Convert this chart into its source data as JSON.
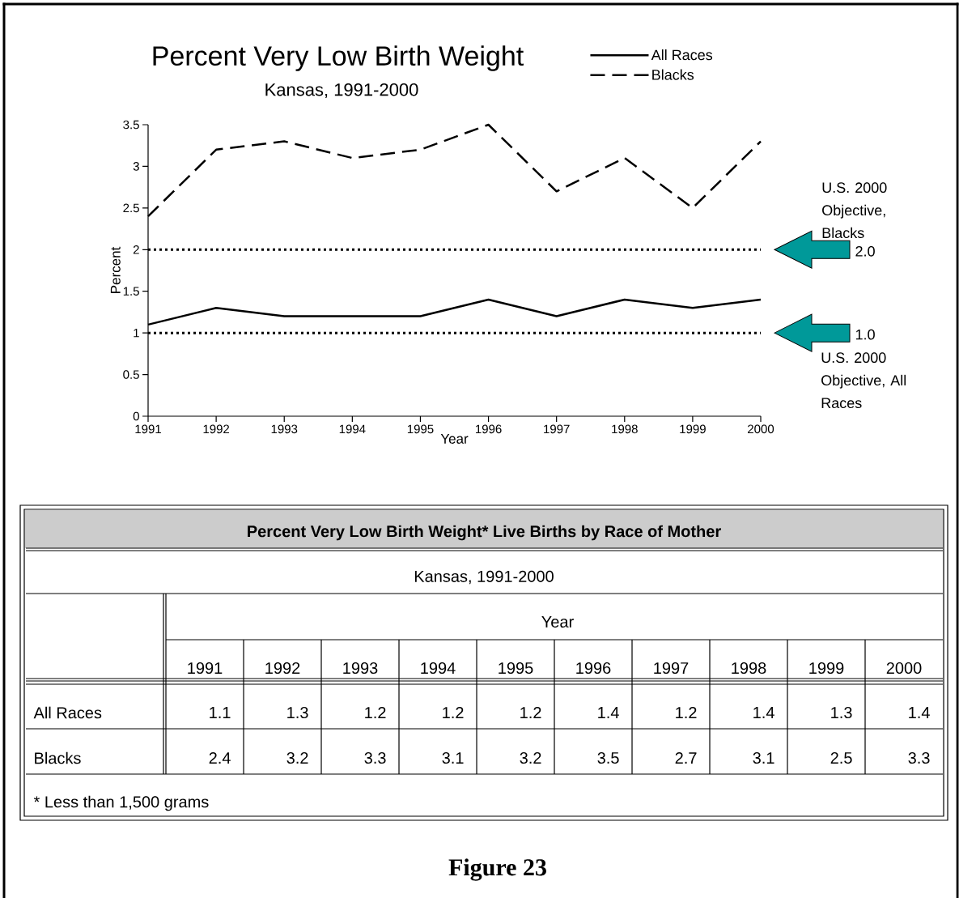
{
  "chart_data": [
    {
      "type": "line",
      "title": "Percent Very Low Birth Weight",
      "subtitle": "Kansas, 1991-2000",
      "xlabel": "Year",
      "ylabel": "Percent",
      "x": [
        1991,
        1992,
        1993,
        1994,
        1995,
        1996,
        1997,
        1998,
        1999,
        2000
      ],
      "series": [
        {
          "name": "All Races",
          "color": "#000000",
          "line_style": "solid",
          "values": [
            1.1,
            1.3,
            1.2,
            1.2,
            1.2,
            1.4,
            1.2,
            1.4,
            1.3,
            1.4
          ]
        },
        {
          "name": "Blacks",
          "color": "#000000",
          "line_style": "dashed",
          "values": [
            2.4,
            3.2,
            3.3,
            3.1,
            3.2,
            3.5,
            2.7,
            3.1,
            2.5,
            3.3
          ]
        }
      ],
      "xlim": [
        1991,
        2000
      ],
      "xticks": [
        1991,
        1992,
        1993,
        1994,
        1995,
        1996,
        1997,
        1998,
        1999,
        2000
      ],
      "ylim": [
        0,
        3.5
      ],
      "yticks": [
        0,
        0.5,
        1,
        1.5,
        2,
        2.5,
        3,
        3.5
      ],
      "ref_lines": [
        {
          "axis": "y",
          "value": 2,
          "color": "#000000",
          "line_style": "dotted"
        },
        {
          "axis": "y",
          "value": 1,
          "color": "#000000",
          "line_style": "dotted"
        }
      ],
      "annotations": [
        "U.S. 2000 Objective, Blacks",
        "U.S. 2000 Objective, All Races",
        "2.0",
        "1.0"
      ],
      "legend": "top right"
    },
    {
      "type": "heatmap",
      "title": "Percent Very Low Birth Weight* Live Births by Race of Mother",
      "subtitle": "Kansas, 1991-2000",
      "xlabel": "Year",
      "categories": [
        "1991",
        "1992",
        "1993",
        "1994",
        "1995",
        "1996",
        "1997",
        "1998",
        "1999",
        "2000"
      ],
      "y_categories": [
        "All Races",
        "Blacks"
      ],
      "cells": [
        [
          1.1,
          1.3,
          1.2,
          1.2,
          1.2,
          1.4,
          1.2,
          1.4,
          1.3,
          1.4
        ],
        [
          2.4,
          3.2,
          3.3,
          3.1,
          3.2,
          3.5,
          2.7,
          3.1,
          2.5,
          3.3
        ]
      ],
      "data_labels": true,
      "annotations": [
        "* Less than 1,500 grams",
        "Figure 23"
      ]
    }
  ]
}
